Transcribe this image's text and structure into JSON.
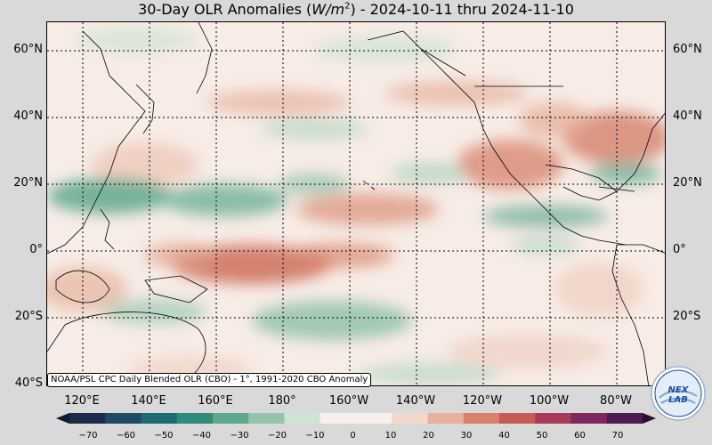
{
  "title": {
    "prefix": "30-Day OLR Anomalies (",
    "unit_base": "W/m",
    "unit_exp": "2",
    "suffix": ") - 2024-10-11 thru 2024-11-10"
  },
  "lat_labels": [
    "60°N",
    "40°N",
    "20°N",
    "0°",
    "20°S",
    "40°S"
  ],
  "lon_labels": [
    "120°E",
    "140°E",
    "160°E",
    "180°",
    "160°W",
    "140°W",
    "120°W",
    "100°W",
    "80°W"
  ],
  "source_note": "NOAA/PSL CPC Daily Blended OLR (CBO) - 1°, 1991-2020 CBO Anomaly",
  "colorbar": {
    "ticks": [
      "−70",
      "−60",
      "−50",
      "−40",
      "−30",
      "−20",
      "−10",
      "0",
      "10",
      "20",
      "30",
      "40",
      "50",
      "60",
      "70"
    ],
    "colors_negative": [
      "#1d2a4a",
      "#1f4a66",
      "#1f6b73",
      "#2f8a7a",
      "#5ea88f",
      "#97c4a8",
      "#cfe3d3"
    ],
    "color_zero": "#f8f0ec",
    "colors_positive": [
      "#f2d8cc",
      "#e6b29d",
      "#d8806a",
      "#c75a55",
      "#a83a5a",
      "#7e2760",
      "#4e1a4f"
    ]
  },
  "logo": {
    "text": "NEXLAB"
  },
  "map_colors": {
    "background": "#f6e9e3",
    "positive_anomaly": "#d98870",
    "negative_anomaly": "#64ad90"
  }
}
